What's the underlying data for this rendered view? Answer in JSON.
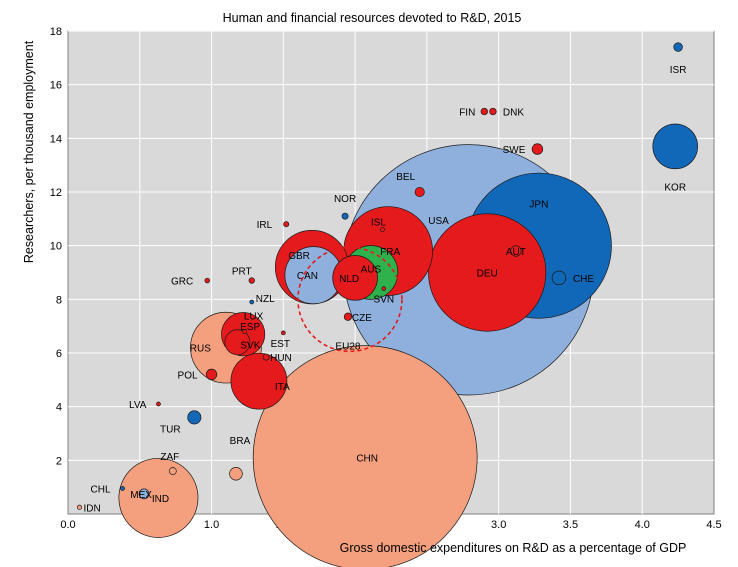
{
  "chart_data": {
    "type": "scatter",
    "title": "Human and financial resources devoted to R&D, 2015",
    "xlabel": "Gross domestic expenditures on R&D as a percentage of GDP",
    "ylabel": "Researchers, per thousand employment",
    "xlim": [
      0,
      4.5
    ],
    "ylim": [
      0,
      18
    ],
    "x_ticks": [
      "0.0",
      "0.5",
      "1.0",
      "1.5",
      "2.0",
      "2.5",
      "3.0",
      "3.5",
      "4.0",
      "4.5"
    ],
    "y_ticks": [
      "2",
      "4",
      "6",
      "8",
      "10",
      "12",
      "14",
      "16",
      "18"
    ],
    "grid": true,
    "background": "#d9d9d9",
    "colors": {
      "red": "#e41a1c",
      "dark_blue": "#1268b8",
      "light_blue": "#8fb0dc",
      "salmon": "#f4a07e",
      "green": "#2fb24c"
    },
    "points": [
      {
        "label": "ISR",
        "x": 4.25,
        "y": 17.4,
        "size": 0.6,
        "color": "dark_blue"
      },
      {
        "label": "KOR",
        "x": 4.23,
        "y": 13.7,
        "size": 16,
        "color": "dark_blue"
      },
      {
        "label": "FIN",
        "x": 2.9,
        "y": 15.0,
        "size": 0.35,
        "color": "red"
      },
      {
        "label": "DNK",
        "x": 2.96,
        "y": 15.0,
        "size": 0.35,
        "color": "red"
      },
      {
        "label": "SWE",
        "x": 3.27,
        "y": 13.6,
        "size": 0.9,
        "color": "red"
      },
      {
        "label": "BEL",
        "x": 2.45,
        "y": 12.0,
        "size": 0.7,
        "color": "red"
      },
      {
        "label": "NOR",
        "x": 1.93,
        "y": 11.1,
        "size": 0.3,
        "color": "dark_blue"
      },
      {
        "label": "IRL",
        "x": 1.52,
        "y": 10.8,
        "size": 0.22,
        "color": "red"
      },
      {
        "label": "ISL",
        "x": 2.19,
        "y": 10.6,
        "size": 0.02,
        "color": "red"
      },
      {
        "label": "USA",
        "x": 2.79,
        "y": 9.1,
        "size": 500,
        "color": "light_blue"
      },
      {
        "label": "JPN",
        "x": 3.28,
        "y": 10.0,
        "size": 168,
        "color": "dark_blue"
      },
      {
        "label": "FRA",
        "x": 2.23,
        "y": 9.8,
        "size": 63,
        "color": "red"
      },
      {
        "label": "AUT",
        "x": 3.12,
        "y": 9.8,
        "size": 0.9,
        "color": "red"
      },
      {
        "label": "DEU",
        "x": 2.92,
        "y": 9.0,
        "size": 110,
        "color": "red"
      },
      {
        "label": "CHE",
        "x": 3.42,
        "y": 8.8,
        "size": 1.5,
        "color": "dark_blue"
      },
      {
        "label": "GBR",
        "x": 1.7,
        "y": 9.2,
        "size": 43,
        "color": "red"
      },
      {
        "label": "CAN",
        "x": 1.71,
        "y": 8.9,
        "size": 26,
        "color": "light_blue"
      },
      {
        "label": "NLD",
        "x": 2.0,
        "y": 8.8,
        "size": 16,
        "color": "red"
      },
      {
        "label": "AUS",
        "x": 2.11,
        "y": 9.0,
        "size": 23,
        "color": "green"
      },
      {
        "label": "GRC",
        "x": 0.97,
        "y": 8.7,
        "size": 0.18,
        "color": "red"
      },
      {
        "label": "PRT",
        "x": 1.28,
        "y": 8.7,
        "size": 0.25,
        "color": "red"
      },
      {
        "label": "NZL",
        "x": 1.28,
        "y": 7.9,
        "size": 0.1,
        "color": "dark_blue"
      },
      {
        "label": "SVN",
        "x": 2.2,
        "y": 8.4,
        "size": 0.05,
        "color": "red"
      },
      {
        "label": "CZE",
        "x": 1.95,
        "y": 7.35,
        "size": 0.45,
        "color": "red"
      },
      {
        "label": "LUX",
        "x": 1.23,
        "y": 6.8,
        "size": 0.01,
        "color": "red"
      },
      {
        "label": "EST",
        "x": 1.5,
        "y": 6.75,
        "size": 0.03,
        "color": "red"
      },
      {
        "label": "ESP",
        "x": 1.22,
        "y": 6.7,
        "size": 15,
        "color": "red"
      },
      {
        "label": "SVK",
        "x": 1.18,
        "y": 6.4,
        "size": 5,
        "color": "red"
      },
      {
        "label": "RUS",
        "x": 1.1,
        "y": 6.2,
        "size": 40,
        "color": "salmon"
      },
      {
        "label": "HUN",
        "x": 1.38,
        "y": 5.85,
        "size": 0.3,
        "color": "red"
      },
      {
        "label": "POL",
        "x": 1.0,
        "y": 5.2,
        "size": 0.9,
        "color": "red"
      },
      {
        "label": "ITA",
        "x": 1.33,
        "y": 4.95,
        "size": 25,
        "color": "red"
      },
      {
        "label": "LVA",
        "x": 0.63,
        "y": 4.1,
        "size": 0.02,
        "color": "red"
      },
      {
        "label": "TUR",
        "x": 0.88,
        "y": 3.6,
        "size": 1.4,
        "color": "dark_blue"
      },
      {
        "label": "BRA",
        "x": 1.17,
        "y": 1.5,
        "size": 1.3,
        "color": "salmon"
      },
      {
        "label": "ZAF",
        "x": 0.73,
        "y": 1.6,
        "size": 0.4,
        "color": "salmon"
      },
      {
        "label": "CHN",
        "x": 2.07,
        "y": 2.1,
        "size": 400,
        "color": "salmon"
      },
      {
        "label": "CHL",
        "x": 0.38,
        "y": 0.95,
        "size": 0.08,
        "color": "dark_blue"
      },
      {
        "label": "MEX",
        "x": 0.53,
        "y": 0.75,
        "size": 0.8,
        "color": "light_blue"
      },
      {
        "label": "IND",
        "x": 0.63,
        "y": 0.6,
        "size": 50,
        "color": "salmon"
      },
      {
        "label": "IDN",
        "x": 0.08,
        "y": 0.25,
        "size": 0.15,
        "color": "salmon"
      }
    ],
    "annotation": {
      "label": "EU28",
      "x": 1.95,
      "y": 8.0,
      "style": "dashed red circle"
    }
  }
}
